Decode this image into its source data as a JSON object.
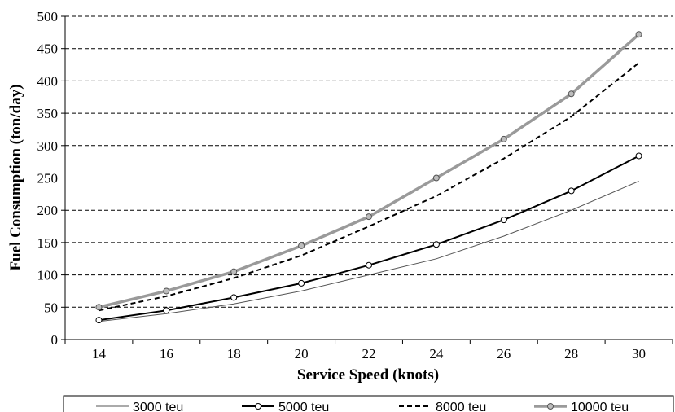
{
  "chart_data": {
    "type": "line",
    "title": "",
    "xlabel": "Service Speed (knots)",
    "ylabel": "Fuel Consumption (ton/day)",
    "x": [
      14,
      16,
      18,
      20,
      22,
      24,
      26,
      28,
      30
    ],
    "xlim": [
      13,
      31
    ],
    "ylim": [
      0,
      500
    ],
    "yticks": [
      0,
      50,
      100,
      150,
      200,
      250,
      300,
      350,
      400,
      450,
      500
    ],
    "grid": "horizontal dashed",
    "legend_position": "bottom",
    "series": [
      {
        "name": "3000 teu",
        "values": [
          28,
          40,
          55,
          75,
          100,
          125,
          160,
          200,
          245
        ],
        "color": "#555555",
        "style": "thin",
        "markers": false
      },
      {
        "name": "5000 teu",
        "values": [
          30,
          45,
          65,
          87,
          115,
          147,
          185,
          230,
          284
        ],
        "color": "#000000",
        "style": "solid",
        "markers": true
      },
      {
        "name": "8000 teu",
        "values": [
          45,
          67,
          95,
          130,
          175,
          222,
          280,
          345,
          428
        ],
        "color": "#000000",
        "style": "dashed",
        "markers": false
      },
      {
        "name": "10000 teu",
        "values": [
          50,
          75,
          105,
          145,
          190,
          250,
          310,
          380,
          472
        ],
        "color": "#9a9a9a",
        "style": "thick",
        "markers": true
      }
    ]
  }
}
